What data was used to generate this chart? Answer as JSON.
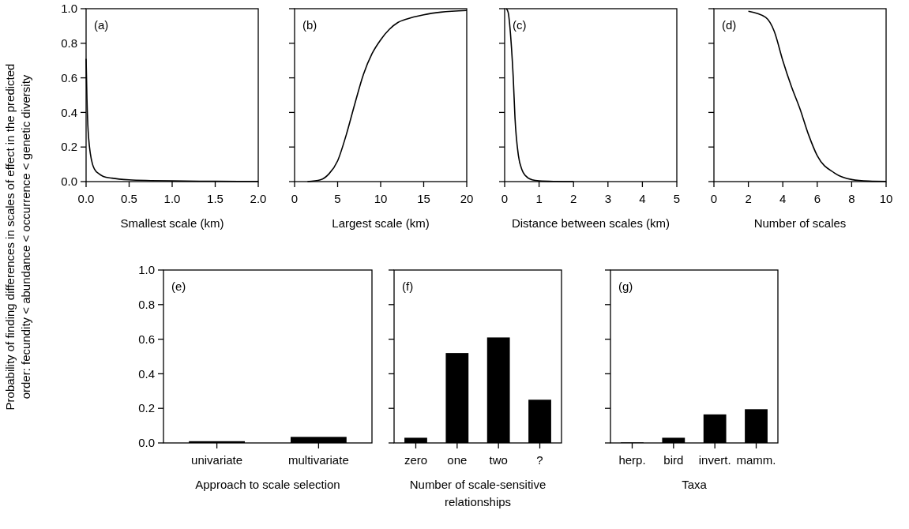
{
  "chart_data": [
    {
      "type": "line",
      "x": [
        0,
        0.005,
        0.01,
        0.02,
        0.03,
        0.05,
        0.075,
        0.1,
        0.15,
        0.2,
        0.3,
        0.5,
        0.75,
        1,
        1.5,
        2
      ],
      "values": [
        0.71,
        0.6,
        0.48,
        0.33,
        0.25,
        0.16,
        0.1,
        0.07,
        0.045,
        0.03,
        0.02,
        0.01,
        0.006,
        0.004,
        0.002,
        0.001
      ],
      "color": "#000000",
      "xlim": [
        0,
        2
      ],
      "xticks": [
        {
          "value": 0,
          "label": "0.0"
        },
        {
          "value": 0.5,
          "label": "0.5"
        },
        {
          "value": 1,
          "label": "1.0"
        },
        {
          "value": 1.5,
          "label": "1.5"
        },
        {
          "value": 2,
          "label": "2.0"
        }
      ],
      "ylim": [
        0,
        1
      ],
      "yticks": [
        {
          "value": 0,
          "label": "0.0"
        },
        {
          "value": 0.2,
          "label": "0.2"
        },
        {
          "value": 0.4,
          "label": "0.4"
        },
        {
          "value": 0.6,
          "label": "0.6"
        },
        {
          "value": 0.8,
          "label": "0.8"
        },
        {
          "value": 1,
          "label": "1.0"
        }
      ],
      "xlabel": "Smallest scale (km)",
      "ylabel": "Probability of finding differences in scales of effect in the predicted order: fecundity < abundance < occurrence < genetic diversity",
      "annotations": [
        "(a)"
      ]
    },
    {
      "type": "line",
      "x": [
        1.5,
        3,
        4,
        5,
        6,
        7,
        8,
        9,
        10,
        11,
        12,
        13,
        15,
        17,
        20
      ],
      "values": [
        0,
        0.01,
        0.045,
        0.12,
        0.27,
        0.45,
        0.62,
        0.74,
        0.82,
        0.88,
        0.92,
        0.94,
        0.965,
        0.98,
        0.99
      ],
      "color": "#000000",
      "xlim": [
        0,
        20
      ],
      "xticks": [
        0,
        5,
        10,
        15,
        20
      ],
      "ylim": [
        0,
        1
      ],
      "yticks": [
        0,
        0.2,
        0.4,
        0.6,
        0.8,
        1
      ],
      "tick_labels": "x",
      "xlabel": "Largest scale (km)",
      "annotations": [
        "(b)"
      ]
    },
    {
      "type": "line",
      "x": [
        0.05,
        0.1,
        0.2,
        0.25,
        0.3,
        0.4,
        0.5,
        0.6,
        0.8,
        1,
        1.5,
        2
      ],
      "values": [
        1,
        0.98,
        0.77,
        0.6,
        0.37,
        0.15,
        0.07,
        0.035,
        0.01,
        0.004,
        0.001,
        0
      ],
      "color": "#000000",
      "xlim": [
        0,
        5
      ],
      "xticks": [
        0,
        1,
        2,
        3,
        4,
        5
      ],
      "ylim": [
        0,
        1
      ],
      "yticks": [
        0,
        0.2,
        0.4,
        0.6,
        0.8,
        1
      ],
      "tick_labels": "x",
      "xlabel": "Distance between scales (km)",
      "annotations": [
        "(c)"
      ]
    },
    {
      "type": "line",
      "x": [
        2,
        3,
        3.5,
        4,
        4.5,
        5,
        5.5,
        6,
        7,
        8,
        9,
        10
      ],
      "values": [
        0.985,
        0.95,
        0.87,
        0.7,
        0.55,
        0.42,
        0.27,
        0.15,
        0.05,
        0.012,
        0.003,
        0.001
      ],
      "color": "#000000",
      "xlim": [
        0,
        10
      ],
      "xticks": [
        0,
        2,
        4,
        6,
        8,
        10
      ],
      "ylim": [
        0,
        1
      ],
      "yticks": [
        0,
        0.2,
        0.4,
        0.6,
        0.8,
        1
      ],
      "tick_labels": "x",
      "xlabel": "Number of scales",
      "annotations": [
        "(d)"
      ]
    },
    {
      "type": "bar",
      "categories": [
        "univariate",
        "multivariate"
      ],
      "values": [
        0.01,
        0.035
      ],
      "color": "#000000",
      "ylim": [
        0,
        1
      ],
      "yticks": [
        {
          "value": 0,
          "label": "0.0"
        },
        {
          "value": 0.2,
          "label": "0.2"
        },
        {
          "value": 0.4,
          "label": "0.4"
        },
        {
          "value": 0.6,
          "label": "0.6"
        },
        {
          "value": 0.8,
          "label": "0.8"
        },
        {
          "value": 1,
          "label": "1.0"
        }
      ],
      "xlabel": "Approach to scale selection",
      "annotations": [
        "(e)"
      ]
    },
    {
      "type": "bar",
      "categories": [
        "zero",
        "one",
        "two",
        "?"
      ],
      "values": [
        0.03,
        0.52,
        0.61,
        0.25
      ],
      "color": "#000000",
      "ylim": [
        0,
        1
      ],
      "yticks": [
        0,
        0.2,
        0.4,
        0.6,
        0.8,
        1
      ],
      "tick_labels": "x",
      "xlabel": "Number of scale-sensitive relationships",
      "annotations": [
        "(f)"
      ]
    },
    {
      "type": "bar",
      "categories": [
        "herp.",
        "bird",
        "invert.",
        "mamm."
      ],
      "values": [
        0.003,
        0.03,
        0.165,
        0.195
      ],
      "color": "#000000",
      "ylim": [
        0,
        1
      ],
      "yticks": [
        0,
        0.2,
        0.4,
        0.6,
        0.8,
        1
      ],
      "tick_labels": "x",
      "xlabel": "Taxa",
      "annotations": [
        "(g)"
      ]
    }
  ]
}
